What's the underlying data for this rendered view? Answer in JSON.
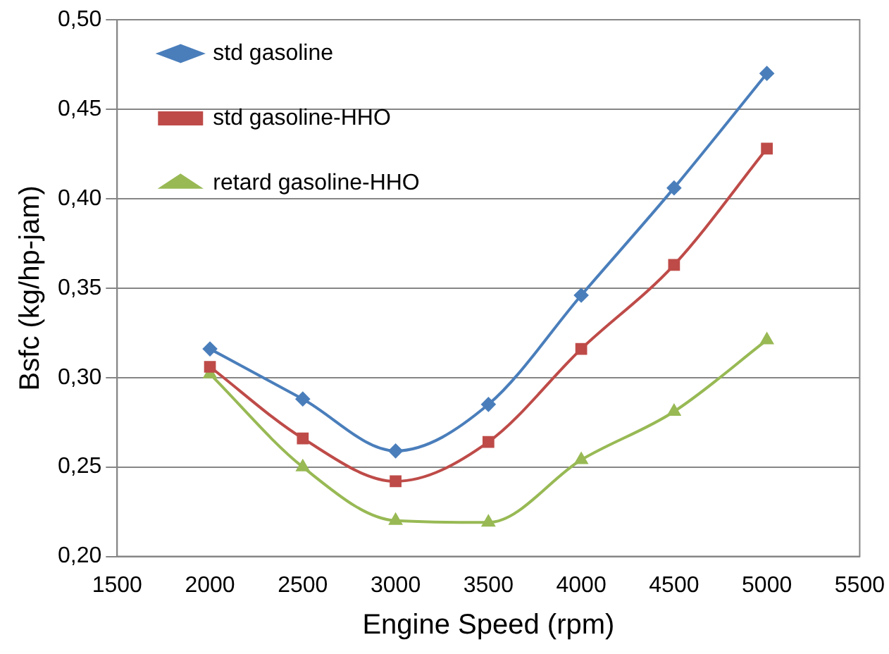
{
  "chart_data": {
    "type": "line",
    "xlabel": "Engine Speed (rpm)",
    "ylabel": "Bsfc (kg/hp-jam)",
    "x": [
      2000,
      2500,
      3000,
      3500,
      4000,
      4500,
      5000
    ],
    "series": [
      {
        "name": "std gasoline",
        "color": "#4a7ebb",
        "marker": "diamond",
        "values": [
          0.316,
          0.288,
          0.259,
          0.285,
          0.346,
          0.406,
          0.47
        ]
      },
      {
        "name": "std gasoline-HHO",
        "color": "#be4b48",
        "marker": "square",
        "values": [
          0.306,
          0.266,
          0.242,
          0.264,
          0.316,
          0.363,
          0.428
        ]
      },
      {
        "name": "retard gasoline-HHO",
        "color": "#98b954",
        "marker": "triangle",
        "values": [
          0.302,
          0.25,
          0.22,
          0.219,
          0.254,
          0.281,
          0.321
        ]
      }
    ],
    "xlim": [
      1500,
      5500
    ],
    "xticks": [
      1500,
      2000,
      2500,
      3000,
      3500,
      4000,
      4500,
      5000,
      5500
    ],
    "ylim": [
      0.2,
      0.5
    ],
    "yticks": [
      {
        "value": 0.2,
        "label": "0,20"
      },
      {
        "value": 0.25,
        "label": "0,25"
      },
      {
        "value": 0.3,
        "label": "0,30"
      },
      {
        "value": 0.35,
        "label": "0,35"
      },
      {
        "value": 0.4,
        "label": "0,40"
      },
      {
        "value": 0.45,
        "label": "0,45"
      },
      {
        "value": 0.5,
        "label": "0,50"
      }
    ],
    "grid": "y",
    "legend": "top left",
    "line_style": "solid"
  }
}
